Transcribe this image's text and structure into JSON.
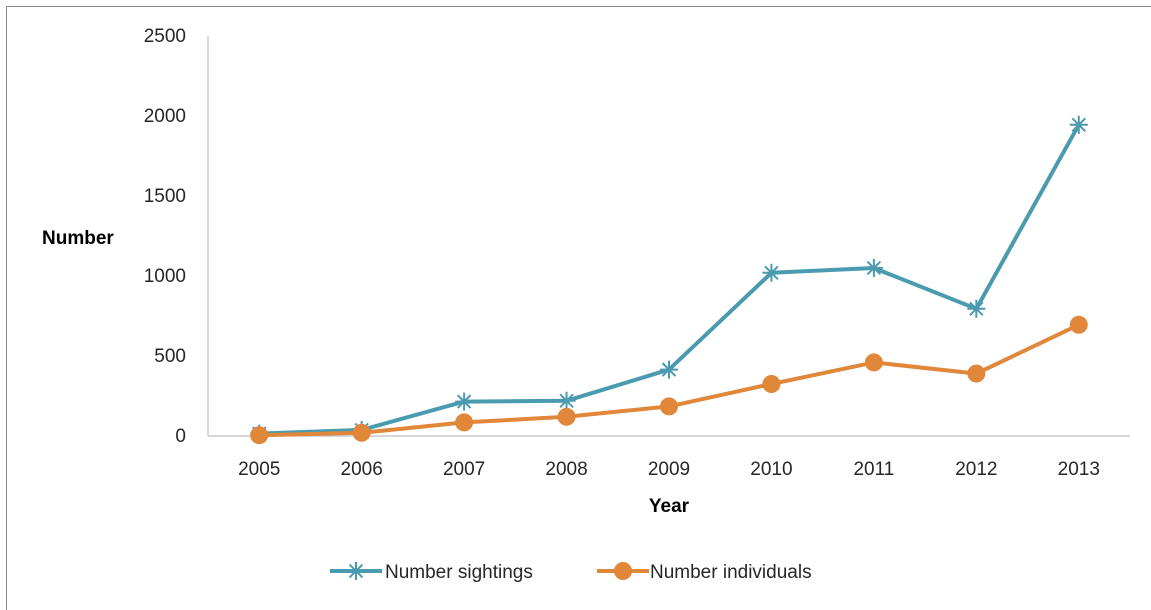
{
  "chart_data": {
    "type": "line",
    "title": "",
    "xlabel": "Year",
    "ylabel": "Number",
    "categories": [
      "2005",
      "2006",
      "2007",
      "2008",
      "2009",
      "2010",
      "2011",
      "2012",
      "2013"
    ],
    "ylim": [
      0,
      2500
    ],
    "yticks": [
      "0",
      "500",
      "1000",
      "1500",
      "2000",
      "2500"
    ],
    "grid": false,
    "legend_position": "bottom",
    "series": [
      {
        "name": "Number sightings",
        "marker": "asterisk",
        "color": "#4a9ab0",
        "values": [
          15,
          38,
          215,
          220,
          415,
          1020,
          1050,
          795,
          1945
        ]
      },
      {
        "name": "Number individuals",
        "marker": "circle",
        "color": "#e0873a",
        "values": [
          5,
          20,
          85,
          120,
          185,
          325,
          460,
          390,
          695
        ]
      }
    ]
  }
}
